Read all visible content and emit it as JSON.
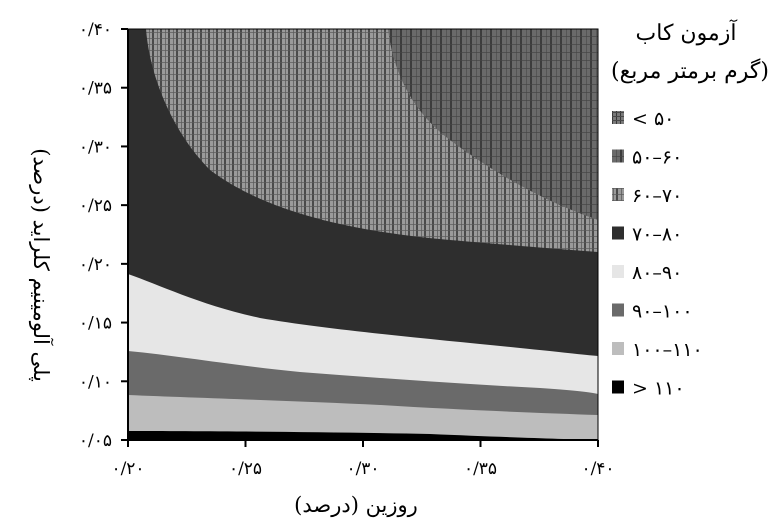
{
  "chart_data": {
    "type": "contour",
    "title": "",
    "xlabel": "روزین (درصد)",
    "ylabel": "پلی آلومینیم کلراید (درصد)",
    "x_ticks": [
      "۰/۲۰",
      "۰/۲۵",
      "۰/۳۰",
      "۰/۳۵",
      "۰/۴۰"
    ],
    "y_ticks": [
      "۰/۰۵",
      "۰/۱۰",
      "۰/۱۵",
      "۰/۲۰",
      "۰/۲۵",
      "۰/۳۰",
      "۰/۳۵",
      "۰/۴۰"
    ],
    "xlim": [
      0.2,
      0.4
    ],
    "ylim": [
      0.05,
      0.4
    ],
    "grid": false,
    "legend": {
      "title": "آزمون کاب",
      "subtitle": "(گرم برمتر مربع)",
      "position": "right"
    },
    "levels": [
      {
        "label": "< ۵۰",
        "range": [
          null,
          50
        ],
        "color": "#5f5f5f",
        "pattern": "stripes-fine"
      },
      {
        "label": "۵۰–۶۰",
        "range": [
          50,
          60
        ],
        "color": "#7a7a7a",
        "pattern": "stripes-coarse"
      },
      {
        "label": "۶۰–۷۰",
        "range": [
          60,
          70
        ],
        "color": "#8c8c8c",
        "pattern": "stripes-medium"
      },
      {
        "label": "۷۰–۸۰",
        "range": [
          70,
          80
        ],
        "color": "#2e2e2e",
        "pattern": "solid"
      },
      {
        "label": "۸۰–۹۰",
        "range": [
          80,
          90
        ],
        "color": "#e6e6e6",
        "pattern": "solid"
      },
      {
        "label": "۹۰–۱۰۰",
        "range": [
          90,
          100
        ],
        "color": "#6a6a6a",
        "pattern": "solid"
      },
      {
        "label": "۱۰۰–۱۱۰",
        "range": [
          100,
          110
        ],
        "color": "#bdbdbd",
        "pattern": "solid"
      },
      {
        "label": "> ۱۱۰",
        "range": [
          110,
          null
        ],
        "color": "#000000",
        "pattern": "solid"
      }
    ],
    "regions": [
      {
        "level": "> ۱۱۰",
        "boundary_top": [
          [
            0.2,
            0.055
          ],
          [
            0.26,
            0.055
          ],
          [
            0.33,
            0.053
          ],
          [
            0.4,
            0.05
          ]
        ]
      },
      {
        "level": "۱۰۰–۱۱۰",
        "boundary_top": [
          [
            0.2,
            0.077
          ],
          [
            0.25,
            0.075
          ],
          [
            0.3,
            0.072
          ],
          [
            0.35,
            0.067
          ],
          [
            0.4,
            0.065
          ]
        ]
      },
      {
        "level": "۹۰–۱۰۰",
        "boundary_top": [
          [
            0.2,
            0.11
          ],
          [
            0.24,
            0.105
          ],
          [
            0.28,
            0.098
          ],
          [
            0.32,
            0.094
          ],
          [
            0.36,
            0.091
          ],
          [
            0.4,
            0.086
          ]
        ]
      },
      {
        "level": "۸۰–۹۰",
        "boundary_top": [
          [
            0.2,
            0.177
          ],
          [
            0.22,
            0.165
          ],
          [
            0.25,
            0.15
          ],
          [
            0.28,
            0.141
          ],
          [
            0.31,
            0.136
          ],
          [
            0.34,
            0.13
          ],
          [
            0.37,
            0.125
          ],
          [
            0.4,
            0.121
          ]
        ]
      },
      {
        "level": "۷۰–۸۰",
        "boundary_top": [
          [
            0.2,
            0.4
          ],
          [
            0.4,
            0.4
          ]
        ]
      },
      {
        "level": "۶۰–۷۰",
        "boundary_left": [
          [
            0.208,
            0.4
          ],
          [
            0.21,
            0.37
          ],
          [
            0.22,
            0.34
          ],
          [
            0.24,
            0.3
          ],
          [
            0.26,
            0.27
          ],
          [
            0.28,
            0.245
          ],
          [
            0.3,
            0.228
          ],
          [
            0.32,
            0.215
          ],
          [
            0.34,
            0.205
          ],
          [
            0.37,
            0.196
          ],
          [
            0.4,
            0.19
          ]
        ]
      },
      {
        "level": "۵۰–۶۰",
        "boundary_left": [
          [
            0.315,
            0.4
          ],
          [
            0.32,
            0.37
          ],
          [
            0.33,
            0.33
          ],
          [
            0.35,
            0.3
          ],
          [
            0.37,
            0.28
          ],
          [
            0.4,
            0.265
          ]
        ]
      }
    ]
  }
}
